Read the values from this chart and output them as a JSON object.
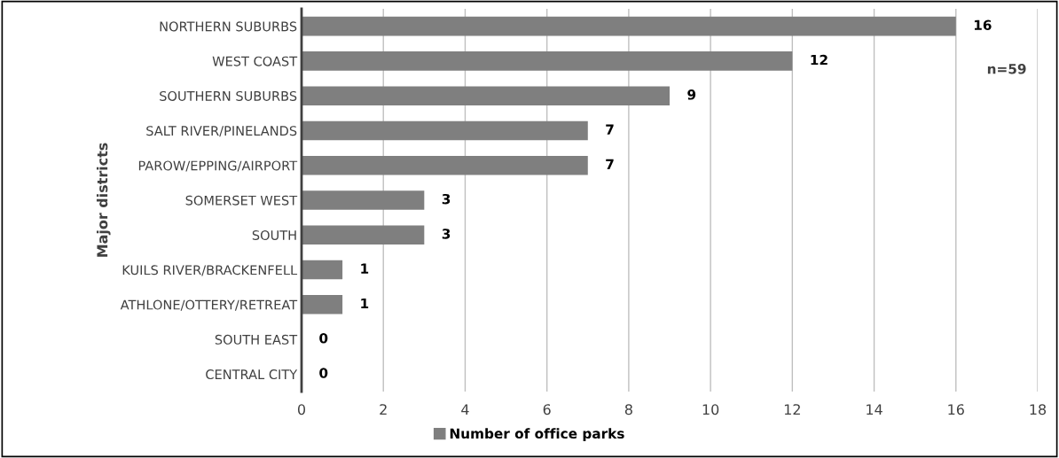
{
  "chart_data": {
    "type": "bar",
    "orientation": "horizontal",
    "categories": [
      "NORTHERN SUBURBS",
      "WEST COAST",
      "SOUTHERN SUBURBS",
      "SALT RIVER/PINELANDS",
      "PAROW/EPPING/AIRPORT",
      "SOMERSET WEST",
      "SOUTH",
      "KUILS RIVER/BRACKENFELL",
      "ATHLONE/OTTERY/RETREAT",
      "SOUTH EAST",
      "CENTRAL CITY"
    ],
    "series": [
      {
        "name": "Number of office parks",
        "color": "#7f7f7f",
        "values": [
          16,
          12,
          9,
          7,
          7,
          3,
          3,
          1,
          1,
          0,
          0
        ]
      }
    ],
    "ylabel": "Major districts",
    "xlim": [
      0,
      18
    ],
    "xticks": [
      0,
      2,
      4,
      6,
      8,
      10,
      12,
      14,
      16,
      18
    ],
    "grid": "x",
    "legend": "bottom",
    "data_labels": true,
    "annotations": [
      "n=59"
    ]
  }
}
